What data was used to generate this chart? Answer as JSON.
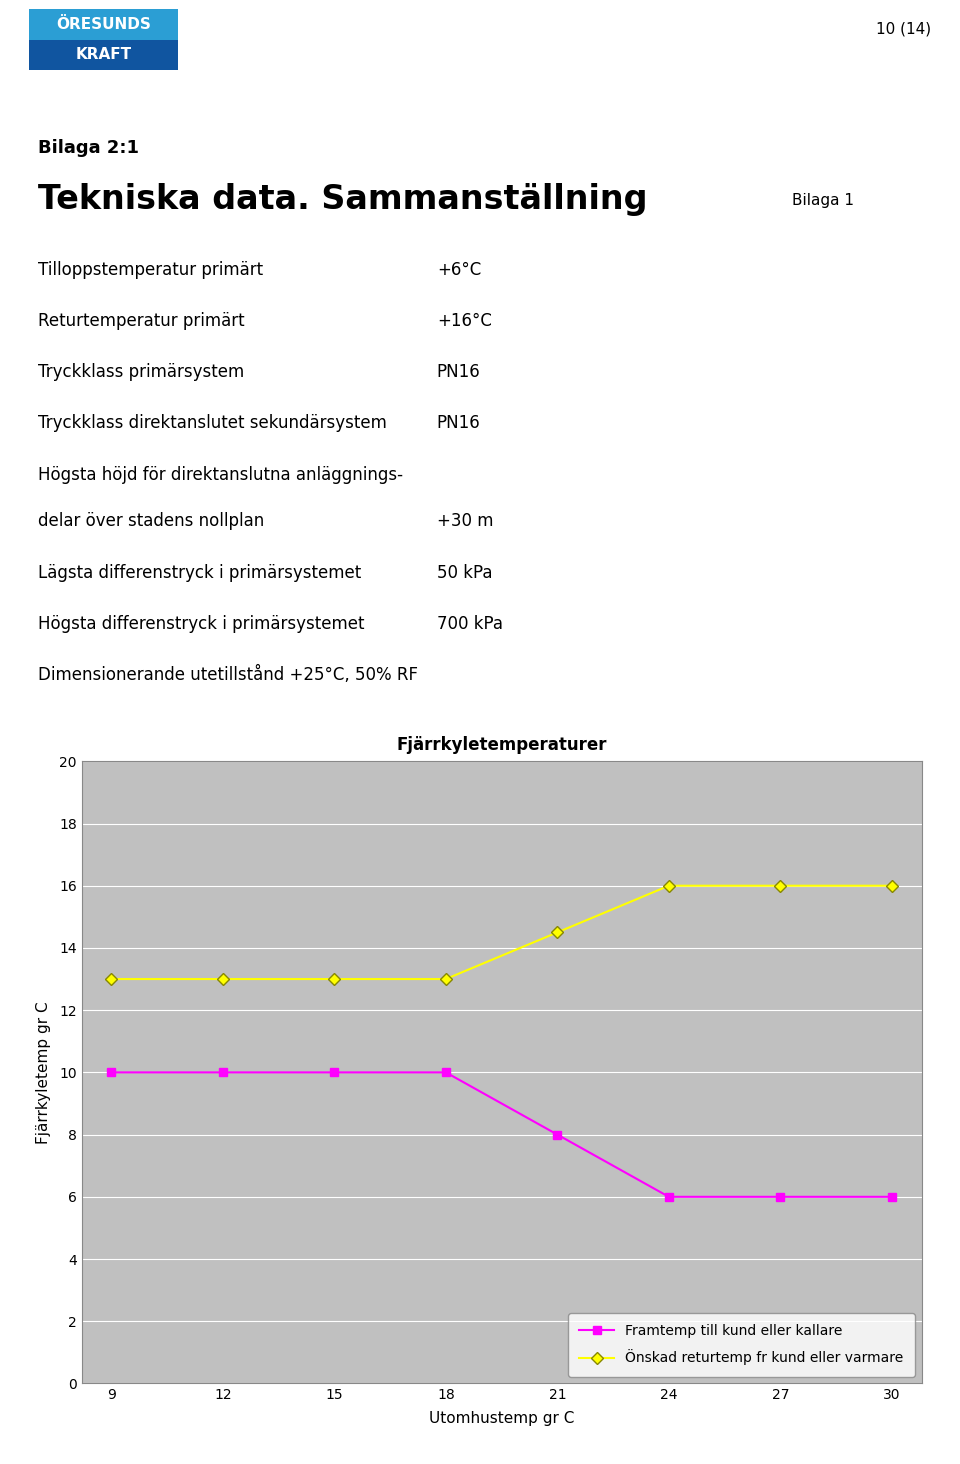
{
  "page_number": "10 (14)",
  "bilaga_label": "Bilaga 2:1",
  "title": "Tekniska data. Sammanställning",
  "bilaga_ref": "Bilaga 1",
  "rows": [
    {
      "label": "Tilloppstemperatur primärt",
      "value": "+6°C"
    },
    {
      "label": "Returtemperatur primärt",
      "value": "+16°C"
    },
    {
      "label": "Tryckklass primärsystem",
      "value": "PN16"
    },
    {
      "label": "Tryckklass direktanslutet sekundärsystem",
      "value": "PN16"
    },
    {
      "label": "Högsta höjd för direktanslutna anläggnings-",
      "value": ""
    },
    {
      "label": "delar över stadens nollplan",
      "value": "+30 m"
    },
    {
      "label": "Lägsta differenstryck i primärsystemet",
      "value": "50 kPa"
    },
    {
      "label": "Högsta differenstryck i primärsystemet",
      "value": "700 kPa"
    },
    {
      "label": "Dimensionerande utetillstånd +25°C, 50% RF",
      "value": ""
    }
  ],
  "chart_title": "Fjärrkyletemperaturer",
  "x_label": "Utomhustemp gr C",
  "y_label": "Fjärrkyletemp gr C",
  "x_data": [
    9,
    12,
    15,
    18,
    21,
    24,
    27,
    30
  ],
  "y_framtemp": [
    10,
    10,
    10,
    10,
    8,
    6,
    6,
    6
  ],
  "y_returtemp": [
    13,
    13,
    13,
    13,
    14.5,
    16,
    16,
    16
  ],
  "framtemp_color": "#FF00FF",
  "returtemp_color": "#FFFF00",
  "returtemp_edge_color": "#888800",
  "legend_framtemp": "Framtemp till kund eller kallare",
  "legend_returtemp": "Önskad returtemp fr kund eller varmare",
  "chart_bg": "#C0C0C0",
  "chart_border": "#888888",
  "y_min": 0,
  "y_max": 20,
  "y_step": 2,
  "x_min": 9,
  "x_max": 30,
  "logo_line1": "ÖRESUNDS",
  "logo_line2": "KRAFT",
  "logo_color_top": "#3A9FD8",
  "logo_color_bottom": "#1B5EA6",
  "logo_umlaut_color": "#2ECC40"
}
